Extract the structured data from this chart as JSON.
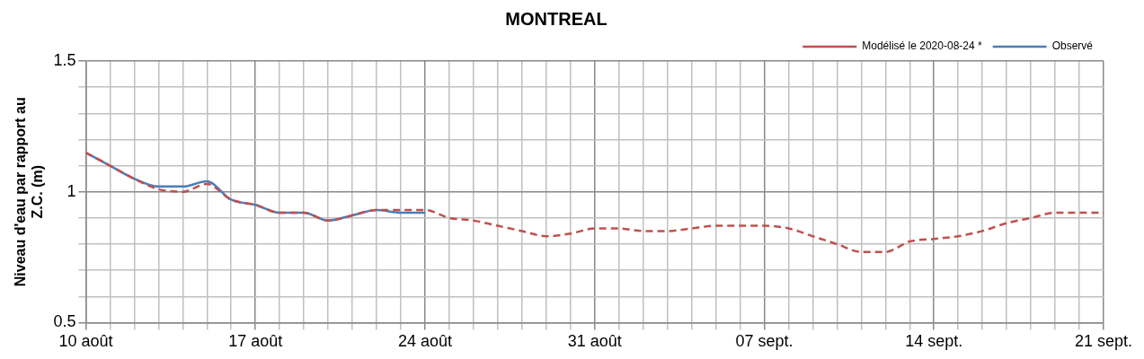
{
  "chart_data": {
    "type": "line",
    "title": "MONTREAL",
    "ylabel": "Niveau d'eau par rapport au Z.C. (m)",
    "xlim": [
      "2020-08-10",
      "2020-09-21"
    ],
    "xticks": [
      {
        "value": "2020-08-10",
        "label": "10 août"
      },
      {
        "value": "2020-08-11",
        "label": null
      },
      {
        "value": "2020-08-12",
        "label": null
      },
      {
        "value": "2020-08-13",
        "label": null
      },
      {
        "value": "2020-08-14",
        "label": null
      },
      {
        "value": "2020-08-15",
        "label": null
      },
      {
        "value": "2020-08-16",
        "label": null
      },
      {
        "value": "2020-08-17",
        "label": "17 août"
      },
      {
        "value": "2020-08-18",
        "label": null
      },
      {
        "value": "2020-08-19",
        "label": null
      },
      {
        "value": "2020-08-20",
        "label": null
      },
      {
        "value": "2020-08-21",
        "label": null
      },
      {
        "value": "2020-08-22",
        "label": null
      },
      {
        "value": "2020-08-23",
        "label": null
      },
      {
        "value": "2020-08-24",
        "label": "24 août"
      },
      {
        "value": "2020-08-25",
        "label": null
      },
      {
        "value": "2020-08-26",
        "label": null
      },
      {
        "value": "2020-08-27",
        "label": null
      },
      {
        "value": "2020-08-28",
        "label": null
      },
      {
        "value": "2020-08-29",
        "label": null
      },
      {
        "value": "2020-08-30",
        "label": null
      },
      {
        "value": "2020-08-31",
        "label": "31 août"
      },
      {
        "value": "2020-09-01",
        "label": null
      },
      {
        "value": "2020-09-02",
        "label": null
      },
      {
        "value": "2020-09-03",
        "label": null
      },
      {
        "value": "2020-09-04",
        "label": null
      },
      {
        "value": "2020-09-05",
        "label": null
      },
      {
        "value": "2020-09-06",
        "label": null
      },
      {
        "value": "2020-09-07",
        "label": "07 sept."
      },
      {
        "value": "2020-09-08",
        "label": null
      },
      {
        "value": "2020-09-09",
        "label": null
      },
      {
        "value": "2020-09-10",
        "label": null
      },
      {
        "value": "2020-09-11",
        "label": null
      },
      {
        "value": "2020-09-12",
        "label": null
      },
      {
        "value": "2020-09-13",
        "label": null
      },
      {
        "value": "2020-09-14",
        "label": "14 sept."
      },
      {
        "value": "2020-09-15",
        "label": null
      },
      {
        "value": "2020-09-16",
        "label": null
      },
      {
        "value": "2020-09-17",
        "label": null
      },
      {
        "value": "2020-09-18",
        "label": null
      },
      {
        "value": "2020-09-19",
        "label": null
      },
      {
        "value": "2020-09-20",
        "label": null
      },
      {
        "value": "2020-09-21",
        "label": "21 sept."
      }
    ],
    "ylim": [
      0.5,
      1.5
    ],
    "yticks": [
      0.5,
      {
        "value": 0.6,
        "label": null
      },
      {
        "value": 0.7,
        "label": null
      },
      {
        "value": 0.8,
        "label": null
      },
      {
        "value": 0.9,
        "label": null
      },
      1,
      {
        "value": 1.1,
        "label": null
      },
      {
        "value": 1.2,
        "label": null
      },
      {
        "value": 1.3,
        "label": null
      },
      {
        "value": 1.4,
        "label": null
      },
      1.5
    ],
    "grid": true,
    "legend": "top right",
    "marker": "none",
    "series": [
      {
        "name": "Observé",
        "color": "#4a7ebb",
        "line_style": "solid",
        "x": [
          "2020-08-10",
          "2020-08-11",
          "2020-08-12",
          "2020-08-13",
          "2020-08-14",
          "2020-08-15",
          "2020-08-16",
          "2020-08-17",
          "2020-08-18",
          "2020-08-19",
          "2020-08-20",
          "2020-08-21",
          "2020-08-22",
          "2020-08-23",
          "2020-08-24"
        ],
        "values": [
          1.15,
          1.1,
          1.05,
          1.02,
          1.02,
          1.04,
          0.97,
          0.95,
          0.92,
          0.92,
          0.89,
          0.91,
          0.93,
          0.92,
          0.92
        ]
      },
      {
        "name": "Modélisé le 2020-08-24 *",
        "color": "#c0504d",
        "line_style": "dashed",
        "x": [
          "2020-08-10",
          "2020-08-11",
          "2020-08-12",
          "2020-08-13",
          "2020-08-14",
          "2020-08-15",
          "2020-08-16",
          "2020-08-17",
          "2020-08-18",
          "2020-08-19",
          "2020-08-20",
          "2020-08-21",
          "2020-08-22",
          "2020-08-23",
          "2020-08-24",
          "2020-08-25",
          "2020-08-26",
          "2020-08-27",
          "2020-08-28",
          "2020-08-29",
          "2020-08-30",
          "2020-08-31",
          "2020-09-01",
          "2020-09-02",
          "2020-09-03",
          "2020-09-04",
          "2020-09-05",
          "2020-09-06",
          "2020-09-07",
          "2020-09-08",
          "2020-09-09",
          "2020-09-10",
          "2020-09-11",
          "2020-09-12",
          "2020-09-13",
          "2020-09-14",
          "2020-09-15",
          "2020-09-16",
          "2020-09-17",
          "2020-09-18",
          "2020-09-19",
          "2020-09-20",
          "2020-09-21"
        ],
        "values": [
          1.15,
          1.1,
          1.05,
          1.01,
          1.0,
          1.03,
          0.97,
          0.95,
          0.92,
          0.92,
          0.89,
          0.91,
          0.93,
          0.93,
          0.93,
          0.9,
          0.89,
          0.87,
          0.85,
          0.83,
          0.84,
          0.86,
          0.86,
          0.85,
          0.85,
          0.86,
          0.87,
          0.87,
          0.87,
          0.86,
          0.83,
          0.8,
          0.77,
          0.77,
          0.81,
          0.82,
          0.83,
          0.85,
          0.88,
          0.9,
          0.92,
          0.92,
          0.92
        ]
      }
    ]
  }
}
